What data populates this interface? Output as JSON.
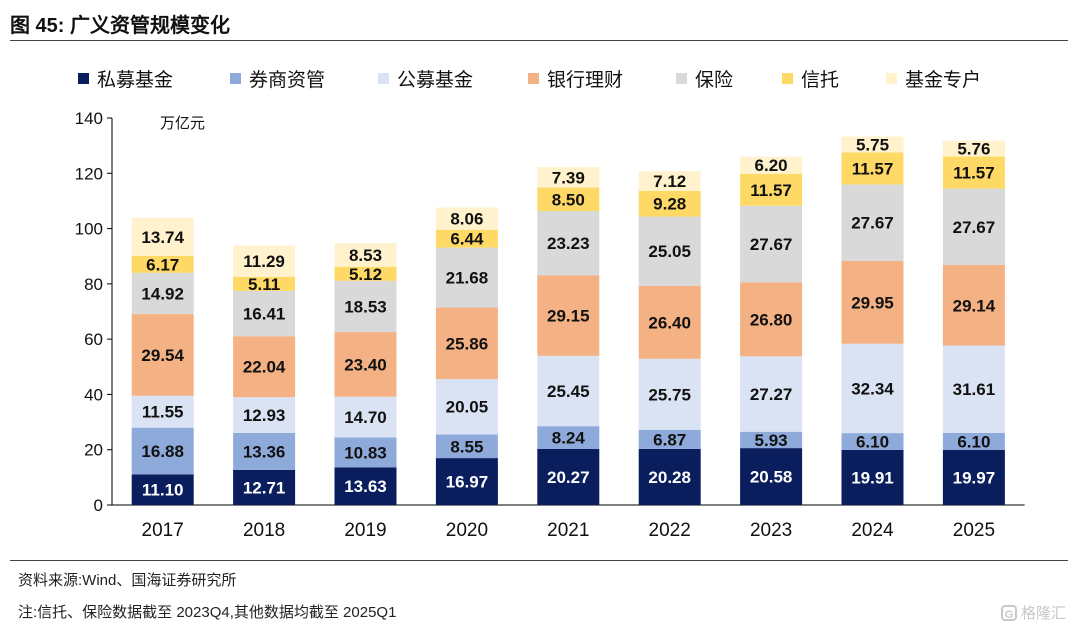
{
  "header": {
    "title": "图 45:  广义资管规模变化"
  },
  "footer": {
    "source": "资料来源:Wind、国海证券研究所",
    "note": "注:信托、保险数据截至 2023Q4,其他数据均截至 2025Q1"
  },
  "watermark": {
    "icon": "G",
    "text": "格隆汇"
  },
  "chart_data": {
    "type": "bar",
    "stacked": true,
    "title": "广义资管规模变化",
    "unit_label": "万亿元",
    "xlabel": "",
    "ylabel": "",
    "ylim": [
      0,
      140
    ],
    "yticks": [
      0,
      20,
      40,
      60,
      80,
      100,
      120,
      140
    ],
    "categories": [
      "2017",
      "2018",
      "2019",
      "2020",
      "2021",
      "2022",
      "2023",
      "2024",
      "2025"
    ],
    "legend_position": "top",
    "series": [
      {
        "name": "私募基金",
        "color": "#0a1e5e",
        "label_color": "#ffffff",
        "values": [
          11.1,
          12.71,
          13.63,
          16.97,
          20.27,
          20.28,
          20.58,
          19.91,
          19.97
        ]
      },
      {
        "name": "券商资管",
        "color": "#8eaadb",
        "label_color": "#111111",
        "values": [
          16.88,
          13.36,
          10.83,
          8.55,
          8.24,
          6.87,
          5.93,
          6.1,
          6.1
        ]
      },
      {
        "name": "公募基金",
        "color": "#dae3f3",
        "label_color": "#111111",
        "values": [
          11.55,
          12.93,
          14.7,
          20.05,
          25.45,
          25.75,
          27.27,
          32.34,
          31.61
        ]
      },
      {
        "name": "银行理财",
        "color": "#f4b183",
        "label_color": "#111111",
        "values": [
          29.54,
          22.04,
          23.4,
          25.86,
          29.15,
          26.4,
          26.8,
          29.95,
          29.14
        ]
      },
      {
        "name": "保险",
        "color": "#d9d9d9",
        "label_color": "#111111",
        "values": [
          14.92,
          16.41,
          18.53,
          21.68,
          23.23,
          25.05,
          27.67,
          27.67,
          27.67
        ]
      },
      {
        "name": "信托",
        "color": "#ffd966",
        "label_color": "#111111",
        "values": [
          6.17,
          5.11,
          5.12,
          6.44,
          8.5,
          9.28,
          11.57,
          11.57,
          11.57
        ]
      },
      {
        "name": "基金专户",
        "color": "#fff2cc",
        "label_color": "#111111",
        "values": [
          13.74,
          11.29,
          8.53,
          8.06,
          7.39,
          7.12,
          6.2,
          5.75,
          5.76
        ]
      }
    ]
  }
}
